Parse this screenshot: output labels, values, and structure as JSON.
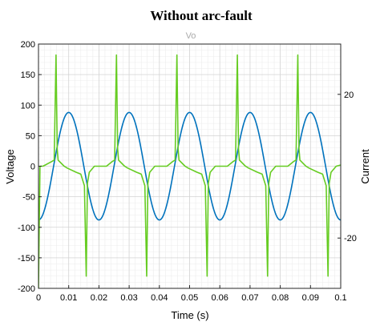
{
  "chart_data": {
    "type": "line",
    "title": "Without arc-fault",
    "subtitle": "Vo",
    "xlabel": "Time (s)",
    "ylabel": "Voltage",
    "y2label": "Current",
    "xlim": [
      0,
      0.1
    ],
    "ylim": [
      -200,
      200
    ],
    "y2lim": [
      -34,
      34
    ],
    "x_ticks": [
      0,
      0.01,
      0.02,
      0.03,
      0.04,
      0.05,
      0.06,
      0.07,
      0.08,
      0.09,
      0.1
    ],
    "x_tick_labels": [
      "0",
      "0.01",
      "0.02",
      "0.03",
      "0.04",
      "0.05",
      "0.06",
      "0.07",
      "0.08",
      "0.09",
      "0.1"
    ],
    "y_ticks": [
      -200,
      -150,
      -100,
      -50,
      0,
      50,
      100,
      150,
      200
    ],
    "y_tick_labels": [
      "-200",
      "-150",
      "-100",
      "-50",
      "0",
      "50",
      "100",
      "150",
      "200"
    ],
    "y2_ticks": [
      -20,
      20
    ],
    "y2_tick_labels": [
      "-20",
      "20"
    ],
    "grid": true,
    "minor_grid": true,
    "series": [
      {
        "axis": "left",
        "color": "#0072BD",
        "x": [
          0,
          0.0025,
          0.0075,
          0.0125,
          0.0175,
          0.0225,
          0.0275,
          0.0325,
          0.0375,
          0.0425,
          0.0475,
          0.0525,
          0.0575,
          0.0625,
          0.0675,
          0.0725,
          0.0775,
          0.0825,
          0.0875,
          0.0925,
          0.0975,
          0.1
        ],
        "y": [
          -88,
          -62,
          62,
          88,
          0,
          -88,
          0,
          88,
          0,
          -88,
          0,
          88,
          0,
          -88,
          0,
          88,
          0,
          -88,
          0,
          88,
          0,
          -88
        ],
        "shape": "sine",
        "amplitude": 88,
        "frequency": 50,
        "phase_deg": -90
      },
      {
        "axis": "left",
        "color": "#66CC22",
        "x": [
          0,
          0.0005,
          0.0015,
          0.0045,
          0.0052,
          0.0058,
          0.0062,
          0.0065,
          0.0085,
          0.0095,
          0.0125,
          0.014,
          0.0152,
          0.0158,
          0.0162,
          0.0168,
          0.0185,
          0.0205,
          0.0225,
          0.0245,
          0.0252,
          0.0258,
          0.0262,
          0.0265,
          0.0285,
          0.0295,
          0.0325,
          0.034,
          0.0352,
          0.0358,
          0.0362,
          0.0368,
          0.0385,
          0.0405,
          0.0425,
          0.0445,
          0.0452,
          0.0458,
          0.0462,
          0.0465,
          0.0485,
          0.0495,
          0.0525,
          0.054,
          0.0552,
          0.0558,
          0.0562,
          0.0568,
          0.0585,
          0.0605,
          0.0625,
          0.0645,
          0.0652,
          0.0658,
          0.0662,
          0.0665,
          0.0685,
          0.0695,
          0.0725,
          0.074,
          0.0752,
          0.0758,
          0.0762,
          0.0768,
          0.0785,
          0.0805,
          0.0825,
          0.0845,
          0.0852,
          0.0858,
          0.0862,
          0.0865,
          0.0885,
          0.0895,
          0.0925,
          0.094,
          0.0952,
          0.0958,
          0.0962,
          0.0968,
          0.0985,
          0.1
        ],
        "y": [
          -200,
          0,
          0,
          8,
          10,
          182,
          28,
          10,
          0,
          -3,
          -10,
          -13,
          -32,
          -180,
          -28,
          -10,
          0,
          0,
          0,
          8,
          10,
          182,
          28,
          10,
          0,
          -3,
          -10,
          -13,
          -32,
          -180,
          -28,
          -10,
          0,
          0,
          0,
          8,
          10,
          182,
          28,
          10,
          0,
          -3,
          -10,
          -13,
          -32,
          -180,
          -28,
          -10,
          0,
          0,
          0,
          8,
          10,
          182,
          28,
          10,
          0,
          -3,
          -10,
          -13,
          -32,
          -180,
          -28,
          -10,
          0,
          0,
          0,
          8,
          10,
          182,
          28,
          10,
          0,
          -3,
          -10,
          -13,
          -32,
          -180,
          -28,
          -10,
          0,
          2
        ]
      }
    ]
  }
}
